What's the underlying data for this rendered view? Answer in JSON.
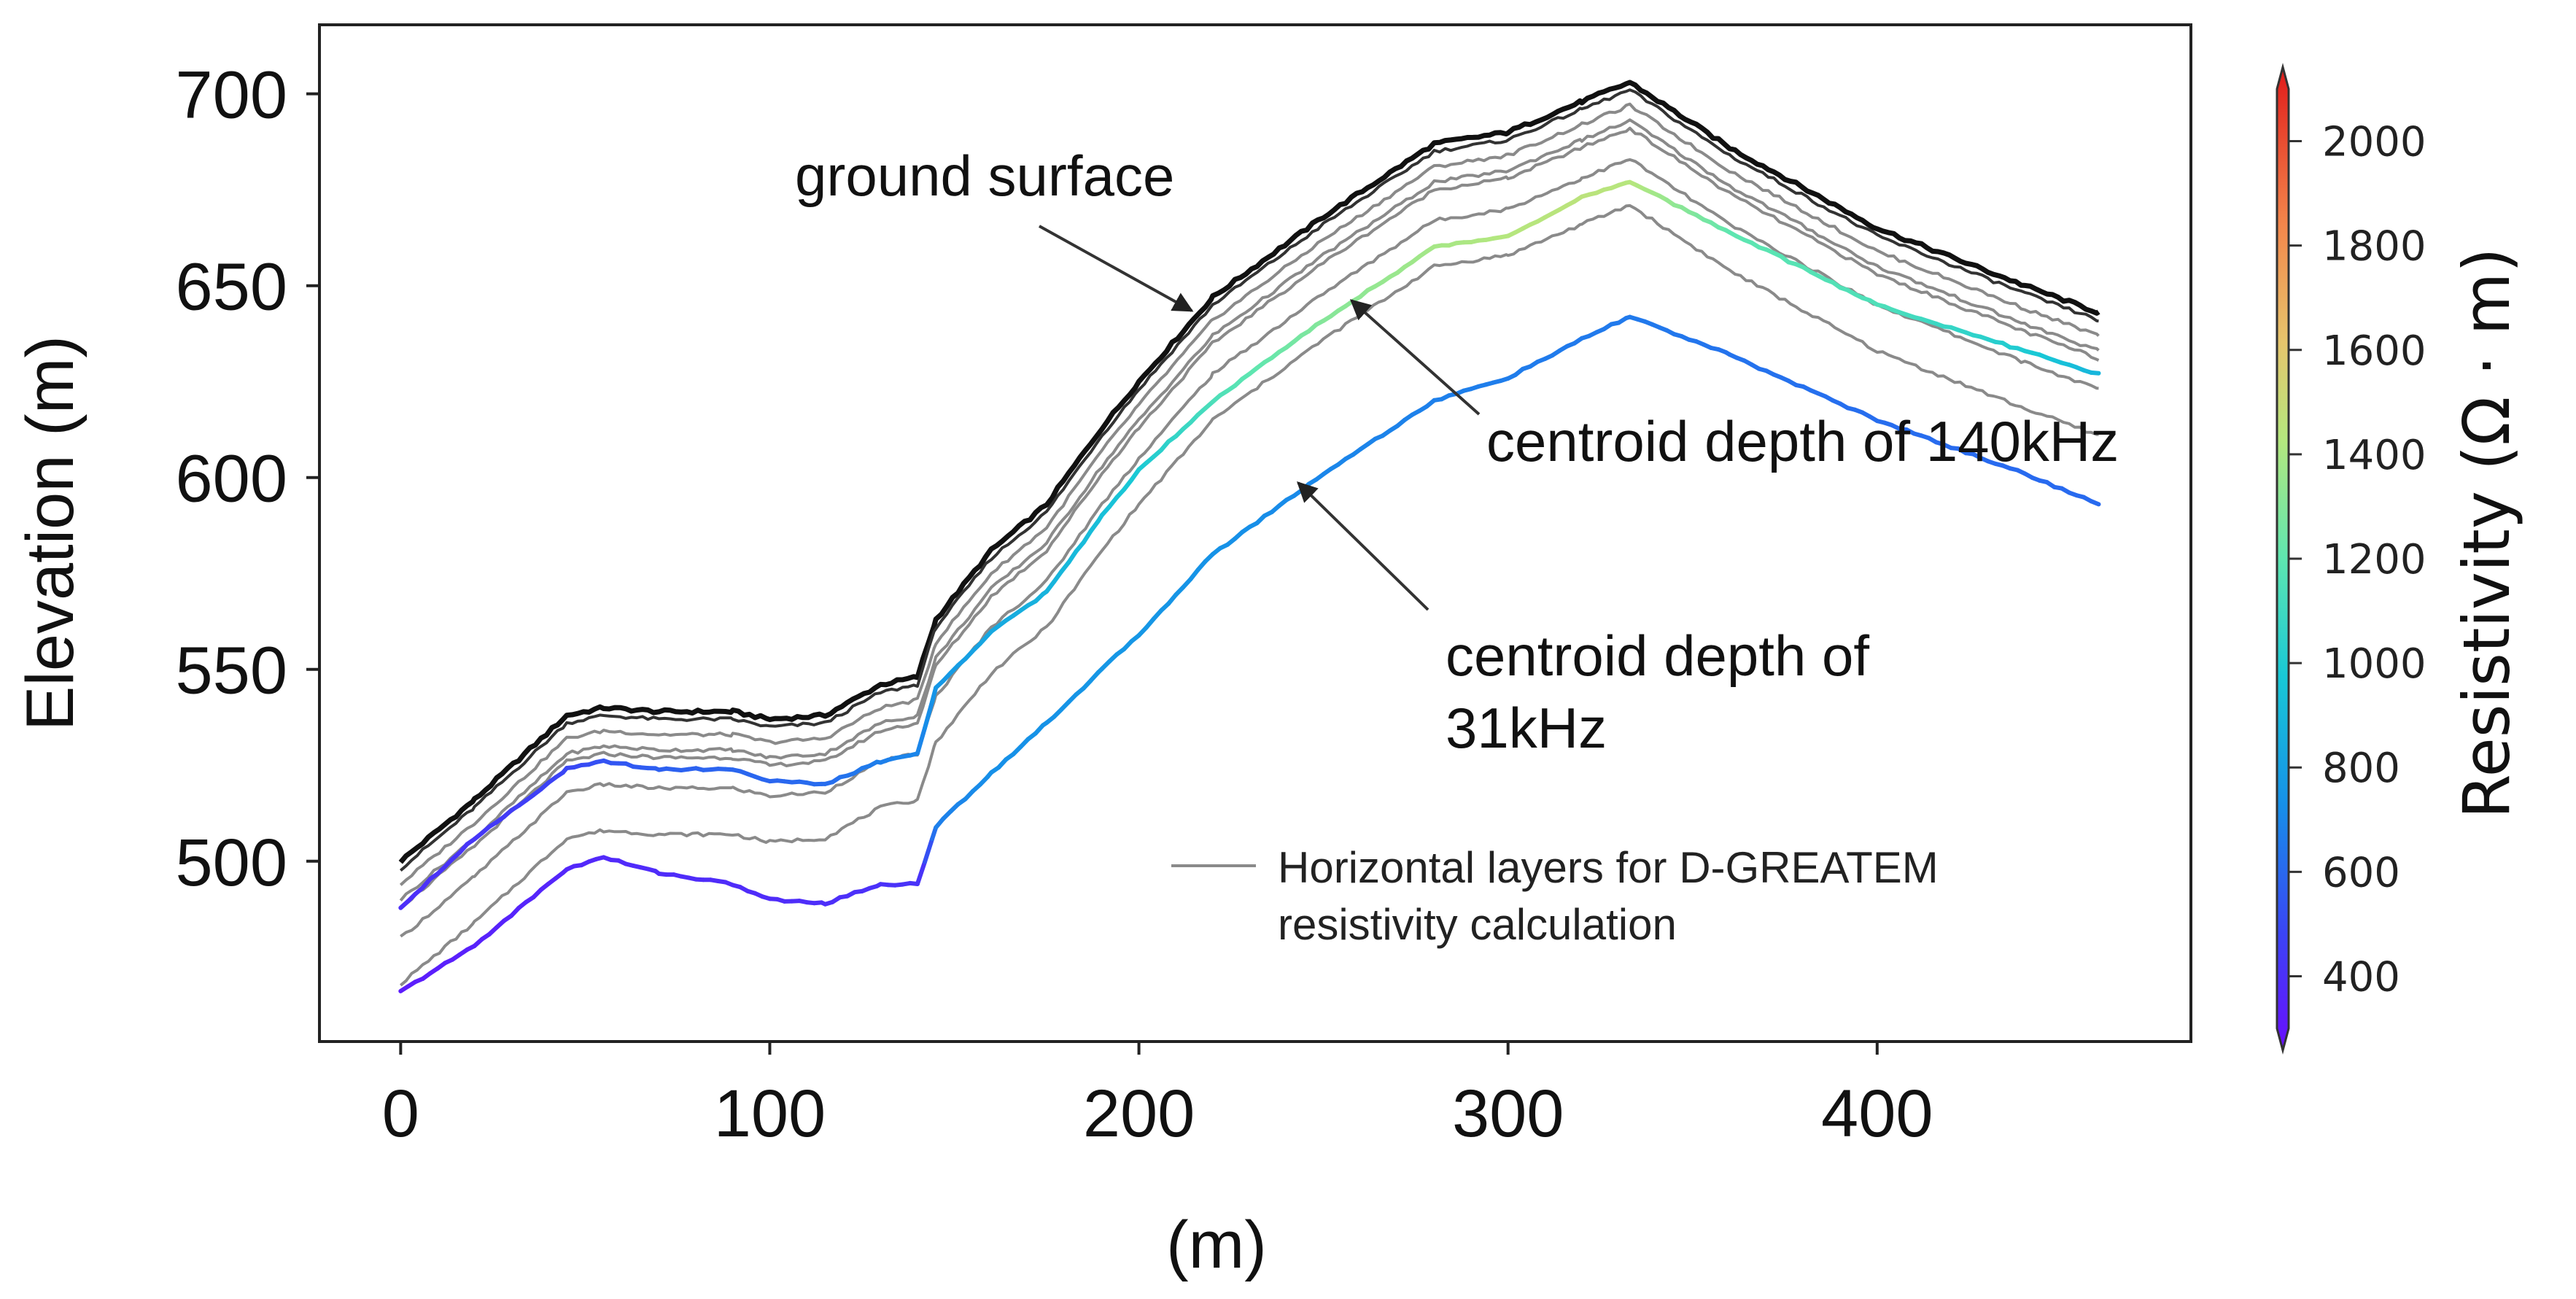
{
  "chart_data": {
    "type": "line",
    "xlabel": "(m)",
    "ylabel": "Elevation (m)",
    "xlim": [
      -22,
      485
    ],
    "ylim": [
      453,
      718
    ],
    "x_ticks": [
      0,
      100,
      200,
      300,
      400
    ],
    "y_ticks": [
      500,
      550,
      600,
      650,
      700
    ],
    "x_tick_labels": [
      "0",
      "100",
      "200",
      "300",
      "400"
    ],
    "y_tick_labels": [
      "500",
      "550",
      "600",
      "650",
      "700"
    ],
    "grid": false,
    "colorbar": {
      "title": "Resistivity (Ω · m)",
      "min": 300,
      "max": 2100,
      "ticks": [
        400,
        600,
        800,
        1000,
        1200,
        1400,
        1600,
        1800,
        2000
      ],
      "tick_labels": [
        "400",
        "600",
        "800",
        "1000",
        "1200",
        "1400",
        "1600",
        "1800",
        "2000"
      ],
      "colormap": "rainbow"
    },
    "ground_surface": {
      "name": "ground surface",
      "x": [
        0,
        20,
        45,
        55,
        70,
        90,
        100,
        115,
        130,
        140,
        145,
        160,
        175,
        190,
        200,
        220,
        250,
        280,
        300,
        320,
        333,
        360,
        400,
        440,
        460
      ],
      "y": [
        500,
        516,
        538,
        540,
        539,
        539,
        537,
        538,
        546,
        548,
        563,
        581,
        593,
        613,
        625,
        647,
        668,
        687,
        690,
        698,
        703,
        686,
        665,
        650,
        643
      ]
    },
    "layer_offsets_m": [
      0,
      -2,
      -6,
      -10,
      -12,
      -20,
      -32
    ],
    "resistivity_series": [
      {
        "name": "centroid depth of 140kHz",
        "x": [
          0,
          20,
          45,
          55,
          70,
          90,
          100,
          115,
          130,
          140,
          145,
          160,
          175,
          190,
          200,
          220,
          250,
          280,
          300,
          320,
          333,
          360,
          400,
          440,
          460
        ],
        "y": [
          488,
          506,
          524,
          526,
          524,
          524,
          521,
          520,
          526,
          528,
          545,
          560,
          570,
          590,
          602,
          620,
          641,
          660,
          663,
          673,
          677,
          664,
          645,
          633,
          627
        ],
        "resistivity": [
          430,
          460,
          520,
          560,
          600,
          620,
          620,
          640,
          700,
          720,
          780,
          850,
          900,
          950,
          1000,
          1150,
          1300,
          1380,
          1420,
          1440,
          1420,
          1200,
          1150,
          1000,
          900
        ]
      },
      {
        "name": "centroid depth of 31kHz",
        "x": [
          0,
          20,
          45,
          55,
          70,
          90,
          100,
          115,
          130,
          140,
          145,
          160,
          175,
          190,
          200,
          220,
          250,
          280,
          300,
          320,
          333,
          360,
          400,
          440,
          460
        ],
        "y": [
          466,
          478,
          498,
          501,
          497,
          494,
          490,
          489,
          494,
          494,
          509,
          523,
          536,
          550,
          559,
          580,
          601,
          620,
          626,
          636,
          642,
          632,
          615,
          601,
          593
        ],
        "resistivity": [
          360,
          380,
          400,
          410,
          420,
          420,
          420,
          430,
          440,
          450,
          700,
          750,
          760,
          780,
          780,
          760,
          720,
          700,
          690,
          680,
          680,
          660,
          640,
          630,
          630
        ]
      }
    ],
    "annotations": [
      {
        "text": "ground surface",
        "target": [
          213,
          636
        ]
      },
      {
        "text": "centroid depth of 140kHz",
        "target": [
          258,
          643
        ]
      },
      {
        "text_lines": [
          "centroid depth of",
          "31kHz"
        ],
        "target": [
          243,
          596
        ]
      }
    ],
    "legend": {
      "label_lines": [
        "Horizontal layers for D-GREATEM",
        "resistivity calculation"
      ],
      "placement": "lower-right"
    }
  },
  "colors": {
    "layer_line": "#8a8a8a",
    "surface_line": "#111111",
    "axis": "#222222",
    "annotation_arrow": "#333333"
  }
}
